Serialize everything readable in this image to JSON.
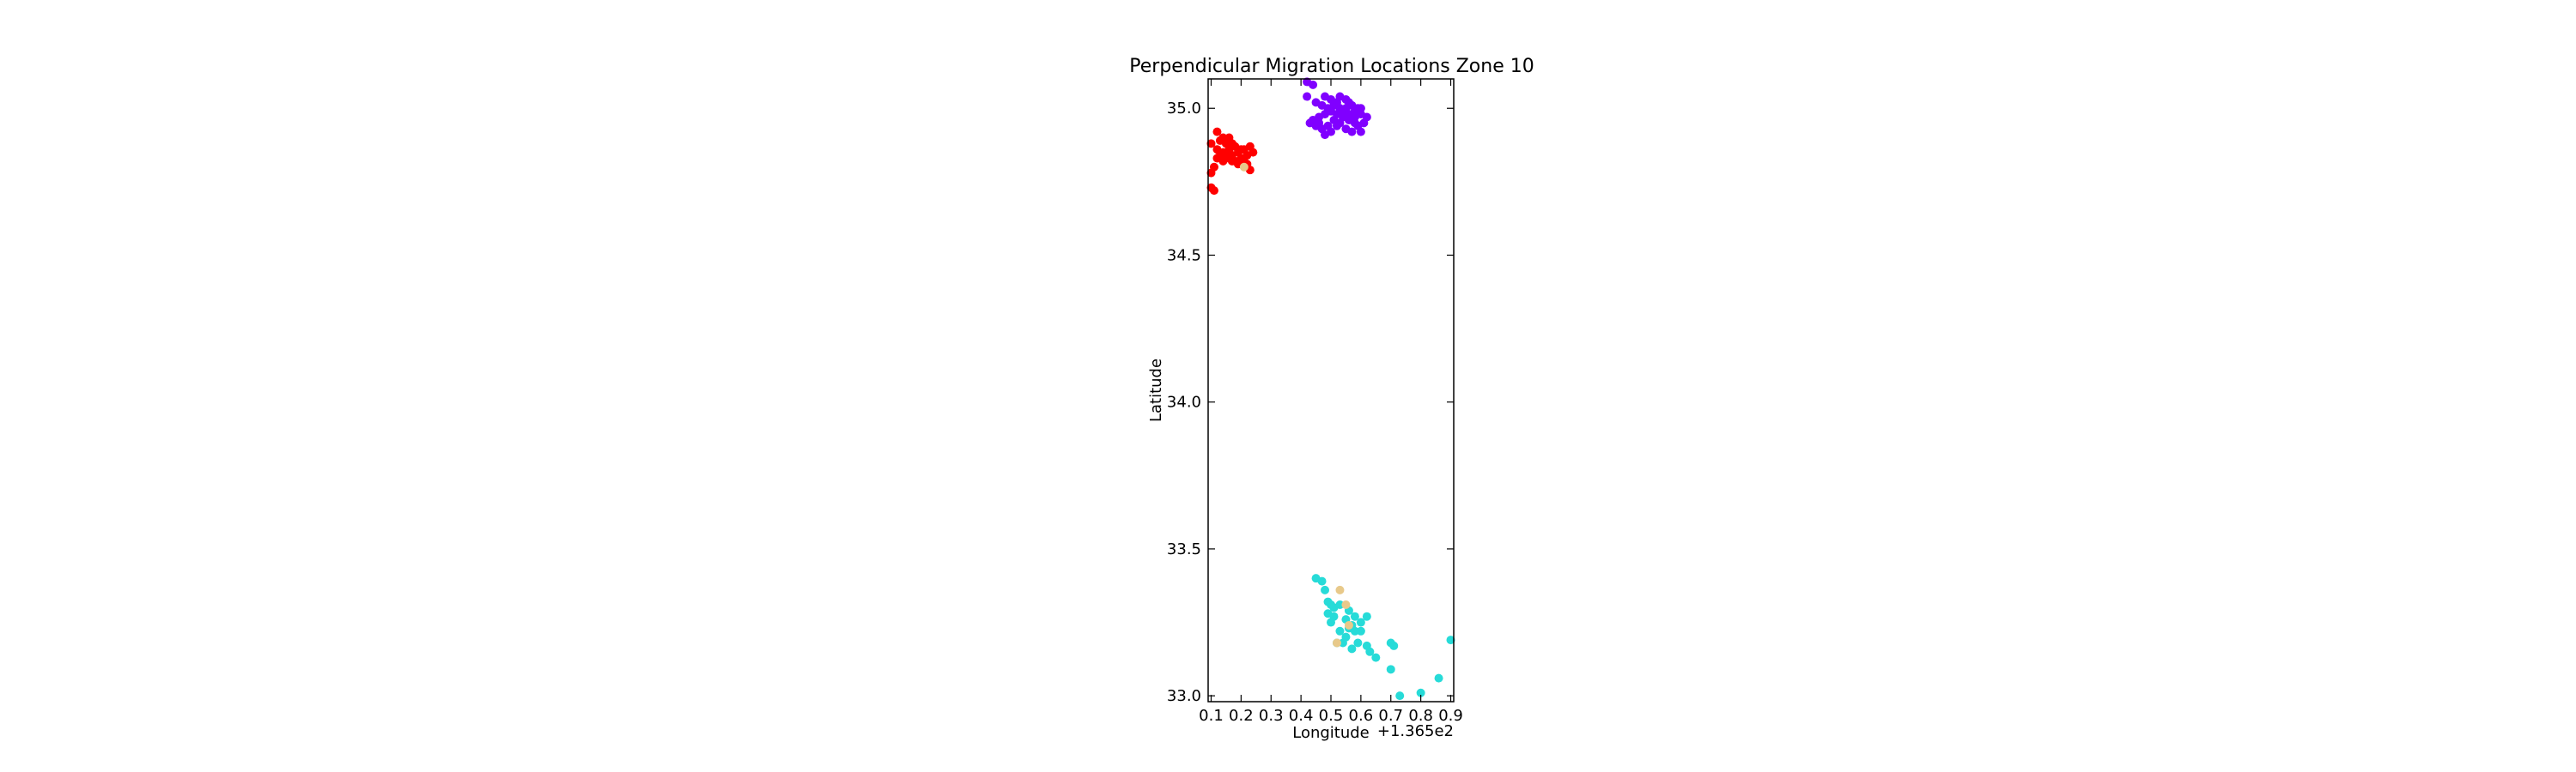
{
  "chart_data": {
    "type": "scatter",
    "title": "Perpendicular Migration Locations Zone 10",
    "xlabel": "Longitude",
    "ylabel": "Latitude",
    "x_offset_label": "+1.365e2",
    "xlim": [
      0.09,
      0.91
    ],
    "ylim": [
      32.98,
      35.1
    ],
    "xticks": [
      "0.1",
      "0.2",
      "0.3",
      "0.4",
      "0.5",
      "0.6",
      "0.7",
      "0.8",
      "0.9"
    ],
    "xtick_values": [
      0.1,
      0.2,
      0.3,
      0.4,
      0.5,
      0.6,
      0.7,
      0.8,
      0.9
    ],
    "yticks": [
      "33.0",
      "33.5",
      "34.0",
      "34.5",
      "35.0"
    ],
    "ytick_values": [
      33.0,
      33.5,
      34.0,
      34.5,
      35.0
    ],
    "grid": false,
    "series": [
      {
        "color": "#ff0000",
        "points": [
          [
            0.1,
            34.73
          ],
          [
            0.11,
            34.72
          ],
          [
            0.1,
            34.78
          ],
          [
            0.11,
            34.8
          ],
          [
            0.1,
            34.88
          ],
          [
            0.12,
            34.92
          ],
          [
            0.13,
            34.89
          ],
          [
            0.12,
            34.86
          ],
          [
            0.14,
            34.85
          ],
          [
            0.13,
            34.84
          ],
          [
            0.15,
            34.88
          ],
          [
            0.16,
            34.86
          ],
          [
            0.15,
            34.83
          ],
          [
            0.17,
            34.84
          ],
          [
            0.18,
            34.87
          ],
          [
            0.17,
            34.82
          ],
          [
            0.19,
            34.85
          ],
          [
            0.2,
            34.83
          ],
          [
            0.19,
            34.81
          ],
          [
            0.21,
            34.86
          ],
          [
            0.22,
            34.84
          ],
          [
            0.23,
            34.87
          ],
          [
            0.24,
            34.85
          ],
          [
            0.22,
            34.81
          ],
          [
            0.23,
            34.79
          ],
          [
            0.14,
            34.9
          ],
          [
            0.16,
            34.9
          ],
          [
            0.18,
            34.82
          ],
          [
            0.2,
            34.86
          ],
          [
            0.16,
            34.84
          ],
          [
            0.12,
            34.83
          ],
          [
            0.21,
            34.82
          ],
          [
            0.17,
            34.88
          ],
          [
            0.14,
            34.82
          ]
        ]
      },
      {
        "color": "#8000ff",
        "points": [
          [
            0.42,
            35.09
          ],
          [
            0.44,
            35.08
          ],
          [
            0.42,
            35.04
          ],
          [
            0.45,
            35.02
          ],
          [
            0.47,
            35.01
          ],
          [
            0.48,
            35.04
          ],
          [
            0.5,
            35.03
          ],
          [
            0.52,
            35.02
          ],
          [
            0.53,
            35.04
          ],
          [
            0.55,
            35.03
          ],
          [
            0.57,
            35.01
          ],
          [
            0.58,
            34.99
          ],
          [
            0.6,
            34.98
          ],
          [
            0.62,
            34.97
          ],
          [
            0.61,
            34.95
          ],
          [
            0.59,
            34.94
          ],
          [
            0.57,
            34.92
          ],
          [
            0.55,
            34.93
          ],
          [
            0.53,
            34.95
          ],
          [
            0.51,
            34.96
          ],
          [
            0.49,
            34.94
          ],
          [
            0.47,
            34.93
          ],
          [
            0.45,
            34.94
          ],
          [
            0.44,
            34.96
          ],
          [
            0.46,
            34.97
          ],
          [
            0.48,
            34.98
          ],
          [
            0.5,
            34.99
          ],
          [
            0.52,
            34.98
          ],
          [
            0.54,
            34.99
          ],
          [
            0.56,
            34.98
          ],
          [
            0.58,
            34.97
          ],
          [
            0.55,
            35.0
          ],
          [
            0.53,
            35.0
          ],
          [
            0.51,
            35.01
          ],
          [
            0.49,
            35.0
          ],
          [
            0.5,
            34.92
          ],
          [
            0.56,
            34.96
          ],
          [
            0.54,
            34.97
          ],
          [
            0.6,
            35.0
          ],
          [
            0.57,
            34.96
          ],
          [
            0.52,
            34.94
          ],
          [
            0.46,
            34.95
          ],
          [
            0.56,
            35.02
          ],
          [
            0.58,
            34.95
          ],
          [
            0.59,
            35.0
          ],
          [
            0.48,
            34.91
          ],
          [
            0.43,
            34.95
          ],
          [
            0.6,
            34.92
          ]
        ]
      },
      {
        "color": "#27dbd8",
        "points": [
          [
            0.45,
            33.4
          ],
          [
            0.47,
            33.39
          ],
          [
            0.48,
            33.36
          ],
          [
            0.49,
            33.32
          ],
          [
            0.51,
            33.3
          ],
          [
            0.5,
            33.31
          ],
          [
            0.53,
            33.31
          ],
          [
            0.49,
            33.28
          ],
          [
            0.51,
            33.27
          ],
          [
            0.55,
            33.26
          ],
          [
            0.57,
            33.24
          ],
          [
            0.58,
            33.22
          ],
          [
            0.6,
            33.25
          ],
          [
            0.62,
            33.27
          ],
          [
            0.56,
            33.23
          ],
          [
            0.55,
            33.2
          ],
          [
            0.59,
            33.18
          ],
          [
            0.62,
            33.17
          ],
          [
            0.63,
            33.15
          ],
          [
            0.65,
            33.13
          ],
          [
            0.57,
            33.16
          ],
          [
            0.52,
            33.18
          ],
          [
            0.54,
            33.18
          ],
          [
            0.7,
            33.18
          ],
          [
            0.71,
            33.17
          ],
          [
            0.7,
            33.09
          ],
          [
            0.73,
            33.0
          ],
          [
            0.8,
            33.01
          ],
          [
            0.86,
            33.06
          ],
          [
            0.9,
            33.19
          ],
          [
            0.53,
            33.22
          ],
          [
            0.58,
            33.27
          ],
          [
            0.6,
            33.22
          ],
          [
            0.5,
            33.25
          ],
          [
            0.56,
            33.29
          ]
        ]
      },
      {
        "color": "#e8c98a",
        "points": [
          [
            0.53,
            33.36
          ],
          [
            0.55,
            33.31
          ],
          [
            0.52,
            33.18
          ],
          [
            0.56,
            33.24
          ],
          [
            0.21,
            34.8
          ]
        ]
      }
    ]
  }
}
